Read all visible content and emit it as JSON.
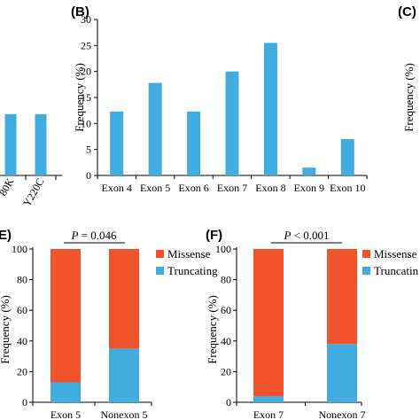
{
  "chart_data": [
    {
      "panel": "",
      "type": "bar",
      "categories": [
        "80K",
        "Y220C"
      ],
      "values": [
        11.8,
        11.8
      ],
      "ylim": [
        0,
        30
      ],
      "bar_color": "#41acdf"
    },
    {
      "panel": "(B)",
      "type": "bar",
      "categories": [
        "Exon 4",
        "Exon 5",
        "Exon 6",
        "Exon 7",
        "Exon 8",
        "Exon 9",
        "Exon 10"
      ],
      "values": [
        12.3,
        17.8,
        12.3,
        20.0,
        25.5,
        1.5,
        7.0
      ],
      "ylabel": "Frequency (%)",
      "ylim": [
        0,
        30
      ],
      "yticks": [
        0,
        5,
        10,
        15,
        20,
        25,
        30
      ],
      "bar_color": "#41acdf"
    },
    {
      "panel": "(C)",
      "type": "bar",
      "ylabel": "Frequency (%)"
    },
    {
      "panel": "E)",
      "type": "bar",
      "stacked": true,
      "categories": [
        "Exon 5",
        "Nonexon 5"
      ],
      "series": [
        {
          "name": "Truncating",
          "values": [
            13,
            35
          ],
          "color": "#41acdf"
        },
        {
          "name": "Missense",
          "values": [
            87,
            65
          ],
          "color": "#f0532b"
        }
      ],
      "ylabel": "Frequency (%)",
      "ylim": [
        0,
        100
      ],
      "yticks": [
        0,
        20,
        40,
        60,
        80,
        100
      ],
      "annotation": {
        "p_label": "P",
        "p_value": " = 0.046"
      }
    },
    {
      "panel": "(F)",
      "type": "bar",
      "stacked": true,
      "categories": [
        "Exon 7",
        "Nonexon 7"
      ],
      "series": [
        {
          "name": "Truncating",
          "values": [
            4,
            38
          ],
          "color": "#41acdf"
        },
        {
          "name": "Missense",
          "values": [
            96,
            62
          ],
          "color": "#f0532b"
        }
      ],
      "ylabel": "Frequency (%)",
      "ylim": [
        0,
        100
      ],
      "yticks": [
        0,
        20,
        40,
        60,
        80,
        100
      ],
      "annotation": {
        "p_label": "P",
        "p_value": " < 0.001"
      }
    }
  ],
  "legend_truncated_label": "Truncatin"
}
